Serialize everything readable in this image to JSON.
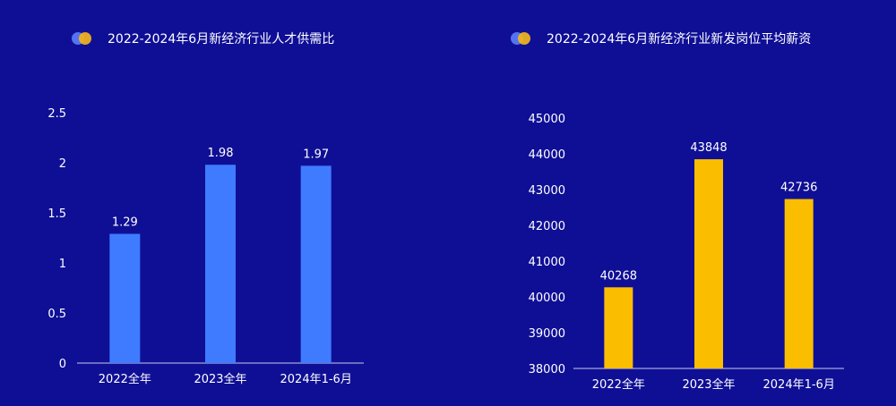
{
  "chart_data": [
    {
      "type": "bar",
      "title": "2022-2024年6月新经济行业人才供需比",
      "categories": [
        "2022全年",
        "2023全年",
        "2024年1-6月"
      ],
      "values": [
        1.29,
        1.98,
        1.97
      ],
      "value_labels": [
        "1.29",
        "1.98",
        "1.97"
      ],
      "yticks": [
        "0",
        "0.5",
        "1",
        "1.5",
        "2",
        "2.5"
      ],
      "ylim": [
        0,
        2.5
      ],
      "bar_color": "#3f7bff",
      "grid": false
    },
    {
      "type": "bar",
      "title": "2022-2024年6月新经济行业新发岗位平均薪资",
      "categories": [
        "2022全年",
        "2023全年",
        "2024年1-6月"
      ],
      "values": [
        40268,
        43848,
        42736
      ],
      "value_labels": [
        "40268",
        "43848",
        "42736"
      ],
      "yticks": [
        "38000",
        "39000",
        "40000",
        "41000",
        "42000",
        "43000",
        "44000",
        "45000"
      ],
      "ylim": [
        38000,
        45000
      ],
      "bar_color": "#fbbd00",
      "grid": false
    }
  ],
  "colors": {
    "background": "#0f0f96",
    "text": "#ffffff",
    "axis": "#c9cbe8",
    "legend_dot_blue": "#5573f0",
    "legend_dot_yellow": "#f2b51c"
  },
  "icons": {
    "title_marker": "two-overlapping-dots-icon"
  }
}
